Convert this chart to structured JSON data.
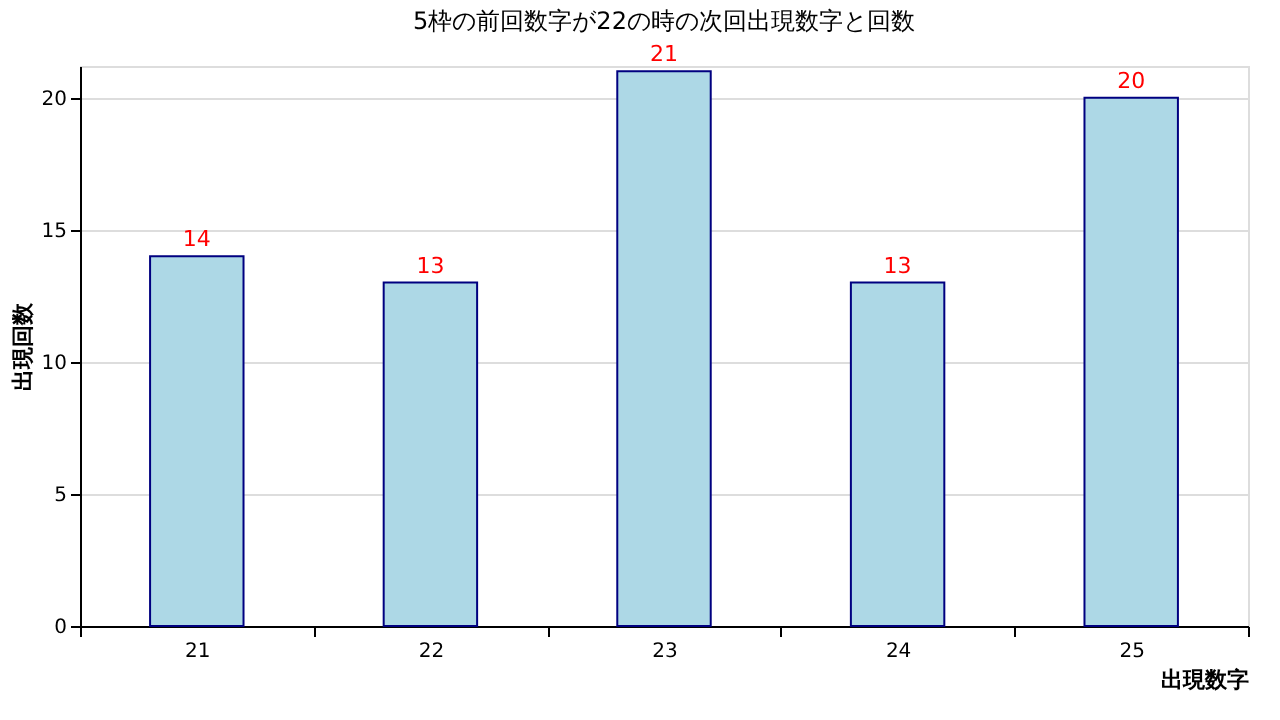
{
  "chart_data": {
    "type": "bar",
    "title": "5枠の前回数字が22の時の次回出現数字と回数",
    "categories": [
      "21",
      "22",
      "23",
      "24",
      "25"
    ],
    "values": [
      14,
      13,
      21,
      13,
      20
    ],
    "color": "#add8e6",
    "xlabel": "出現数字",
    "ylabel": "出現回数",
    "ylim": [
      0,
      21.2
    ],
    "yticks": [
      0,
      5,
      10,
      15,
      20
    ],
    "grid": "y",
    "data_labels": true
  }
}
